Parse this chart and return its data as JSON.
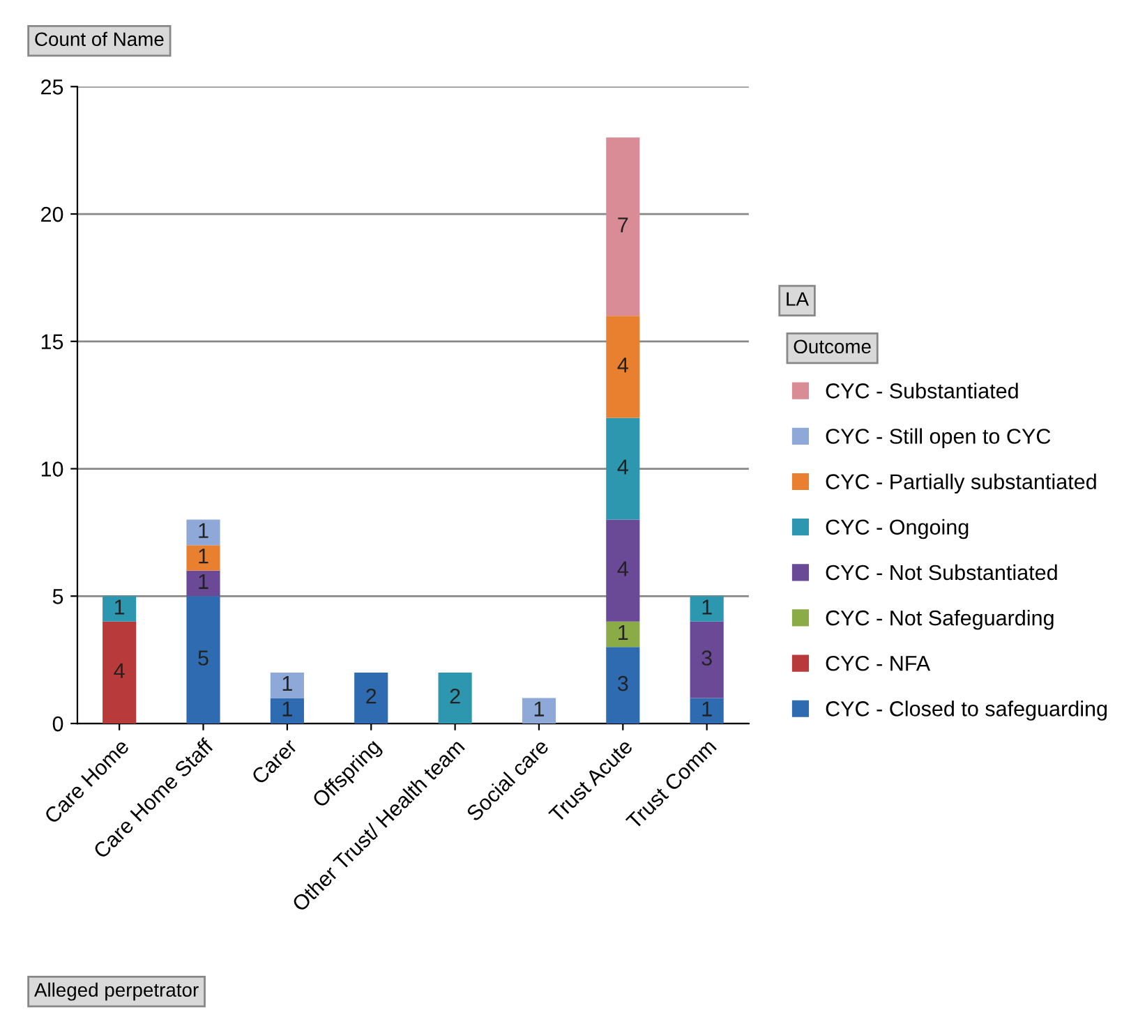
{
  "chart_data": {
    "type": "bar",
    "stacked": true,
    "ylabel": "Count of Name",
    "xlabel": "Alleged perpetrator",
    "legend_title": "Outcome",
    "annotations": [
      "LA"
    ],
    "categories": [
      "Care Home",
      "Care Home Staff",
      "Carer",
      "Offspring",
      "Other Trust/ Health team",
      "Social care",
      "Trust Acute",
      "Trust Comm"
    ],
    "series": [
      {
        "name": "CYC - Closed to safeguarding",
        "color": "#2e6bb0",
        "values": [
          null,
          5,
          1,
          2,
          null,
          null,
          3,
          1
        ]
      },
      {
        "name": "CYC - NFA",
        "color": "#b83a3a",
        "values": [
          4,
          null,
          null,
          null,
          null,
          null,
          null,
          null
        ]
      },
      {
        "name": "CYC - Not Safeguarding",
        "color": "#8aab45",
        "values": [
          null,
          null,
          null,
          null,
          null,
          null,
          1,
          null
        ]
      },
      {
        "name": "CYC - Not Substantiated",
        "color": "#6a4a97",
        "values": [
          null,
          1,
          null,
          null,
          null,
          null,
          4,
          3
        ]
      },
      {
        "name": "CYC - Ongoing",
        "color": "#2e97b0",
        "values": [
          1,
          null,
          null,
          null,
          2,
          null,
          4,
          1
        ]
      },
      {
        "name": "CYC - Partially substantiated",
        "color": "#e8802f",
        "values": [
          null,
          1,
          null,
          null,
          null,
          null,
          4,
          null
        ]
      },
      {
        "name": "CYC - Still open to CYC",
        "color": "#8ea8d8",
        "values": [
          null,
          1,
          1,
          null,
          null,
          1,
          null,
          null
        ]
      },
      {
        "name": "CYC - Substantiated",
        "color": "#d98c95",
        "values": [
          null,
          null,
          null,
          null,
          null,
          null,
          7,
          null
        ]
      }
    ],
    "ylim": [
      0,
      25
    ],
    "yticks": [
      0,
      5,
      10,
      15,
      20,
      25
    ],
    "grid": "y",
    "legend": "right",
    "data_labels": true
  }
}
